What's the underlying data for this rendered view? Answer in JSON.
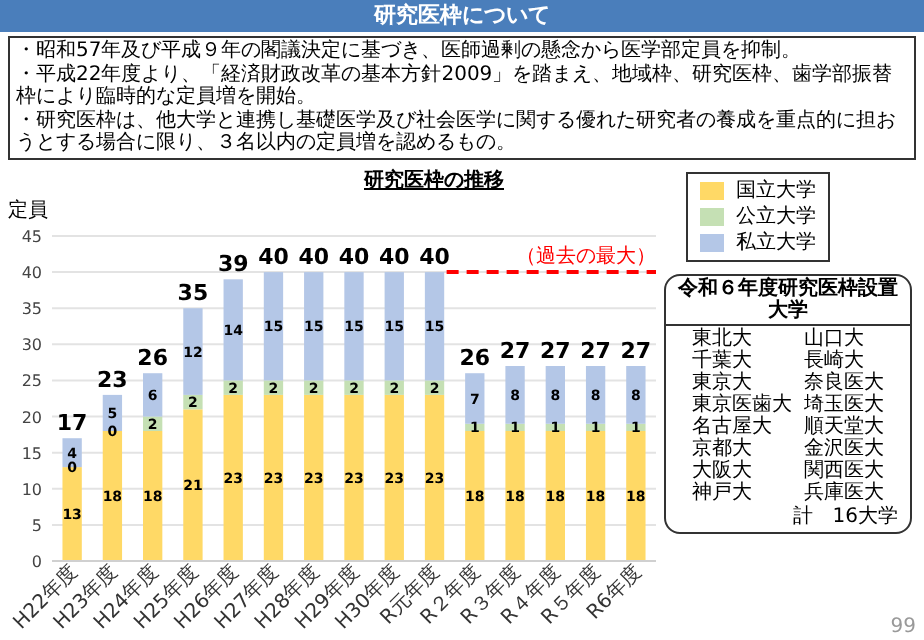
{
  "chart_data": {
    "type": "bar",
    "stacked": true,
    "title": "研究医枠の推移",
    "ylabel": "定員",
    "categories": [
      "H22年度",
      "H23年度",
      "H24年度",
      "H25年度",
      "H26年度",
      "H27年度",
      "H28年度",
      "H29年度",
      "H30年度",
      "R元年度",
      "R２年度",
      "R３年度",
      "R４年度",
      "R５年度",
      "R6年度"
    ],
    "series": [
      {
        "name": "国立大学",
        "color": "#ffd966",
        "values": [
          13,
          18,
          18,
          21,
          23,
          23,
          23,
          23,
          23,
          23,
          18,
          18,
          18,
          18,
          18
        ]
      },
      {
        "name": "公立大学",
        "color": "#c5e0b4",
        "values": [
          0,
          0,
          2,
          2,
          2,
          2,
          2,
          2,
          2,
          2,
          1,
          1,
          1,
          1,
          1
        ]
      },
      {
        "name": "私立大学",
        "color": "#b4c7e7",
        "values": [
          4,
          5,
          6,
          12,
          14,
          15,
          15,
          15,
          15,
          15,
          7,
          8,
          8,
          8,
          8
        ]
      }
    ],
    "totals": [
      "17",
      "23",
      "26",
      "35",
      "39",
      "40",
      "40",
      "40",
      "40",
      "40",
      "26",
      "27",
      "27",
      "27",
      "27"
    ],
    "data_labels": true,
    "ylim": [
      0,
      45
    ],
    "yticks": [
      0,
      5,
      10,
      15,
      20,
      25,
      30,
      35,
      40,
      45
    ],
    "grid": "y",
    "legend": "top right",
    "ref_lines": [
      {
        "axis": "y",
        "value": 40,
        "label": "（過去の最大）",
        "color": "#ff0000",
        "line_style": "dashed"
      }
    ],
    "annotations": [
      "研究医枠について",
      "・昭和57年及び平成９年の閣議決定に基づき、医師過剰の懸念から医学部定員を抑制。",
      "・平成22年度より、「経済財政改革の基本方針2009」を踏まえ、地域枠、研究医枠、歯学部振替枠により臨時的な定員増を開始。",
      "・研究医枠は、他大学と連携し基礎医学及び社会医学に関する優れた研究者の養成を重点的に担おうとする場合に限り、３名以内の定員増を認めるもの。",
      "令和６年度研究医枠設置大学",
      "東北大",
      "千葉大",
      "東京大",
      "東京医歯大",
      "名古屋大",
      "京都大",
      "大阪大",
      "神戸大",
      "山口大",
      "長崎大",
      "奈良医大",
      "埼玉医大",
      "順天堂大",
      "金沢医大",
      "関西医大",
      "兵庫医大",
      "計　16大学",
      "99"
    ]
  }
}
